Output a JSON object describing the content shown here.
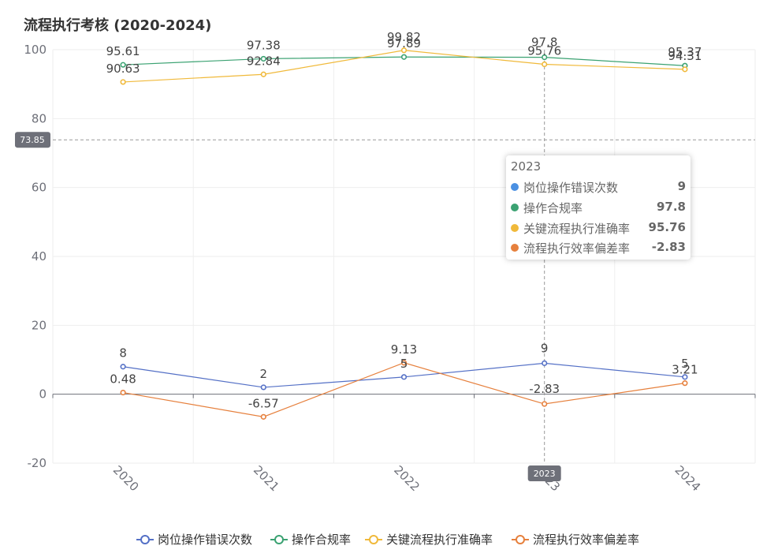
{
  "chart_data": {
    "type": "line",
    "title": "流程执行考核 (2020-2024)",
    "categories": [
      "2020",
      "2021",
      "2022",
      "2023",
      "2024"
    ],
    "ylim": [
      -20,
      100
    ],
    "yticks": [
      -20,
      0,
      20,
      40,
      60,
      80,
      100
    ],
    "series": [
      {
        "name": "岗位操作错误次数",
        "color": "#5470c6",
        "values": [
          8,
          2,
          5,
          9,
          5
        ]
      },
      {
        "name": "操作合规率",
        "color": "#3ba272",
        "values": [
          95.61,
          97.38,
          97.89,
          97.8,
          95.37
        ]
      },
      {
        "name": "关键流程执行准确率",
        "color": "#f0b93a",
        "values": [
          90.63,
          92.84,
          99.82,
          95.76,
          94.31
        ]
      },
      {
        "name": "流程执行效率偏差率",
        "color": "#e6803d",
        "values": [
          0.48,
          -6.57,
          9.13,
          -2.83,
          3.21
        ]
      }
    ],
    "crosshair": {
      "y_value": "73.85",
      "x_category": "2023"
    },
    "legend_position": "bottom"
  },
  "tooltip": {
    "title": "2023",
    "rows": [
      {
        "name": "岗位操作错误次数",
        "value": "9",
        "color": "#4a90e2"
      },
      {
        "name": "操作合规率",
        "value": "97.8",
        "color": "#3ba272"
      },
      {
        "name": "关键流程执行准确率",
        "value": "95.76",
        "color": "#f0b93a"
      },
      {
        "name": "流程执行效率偏差率",
        "value": "-2.83",
        "color": "#e6803d"
      }
    ]
  }
}
